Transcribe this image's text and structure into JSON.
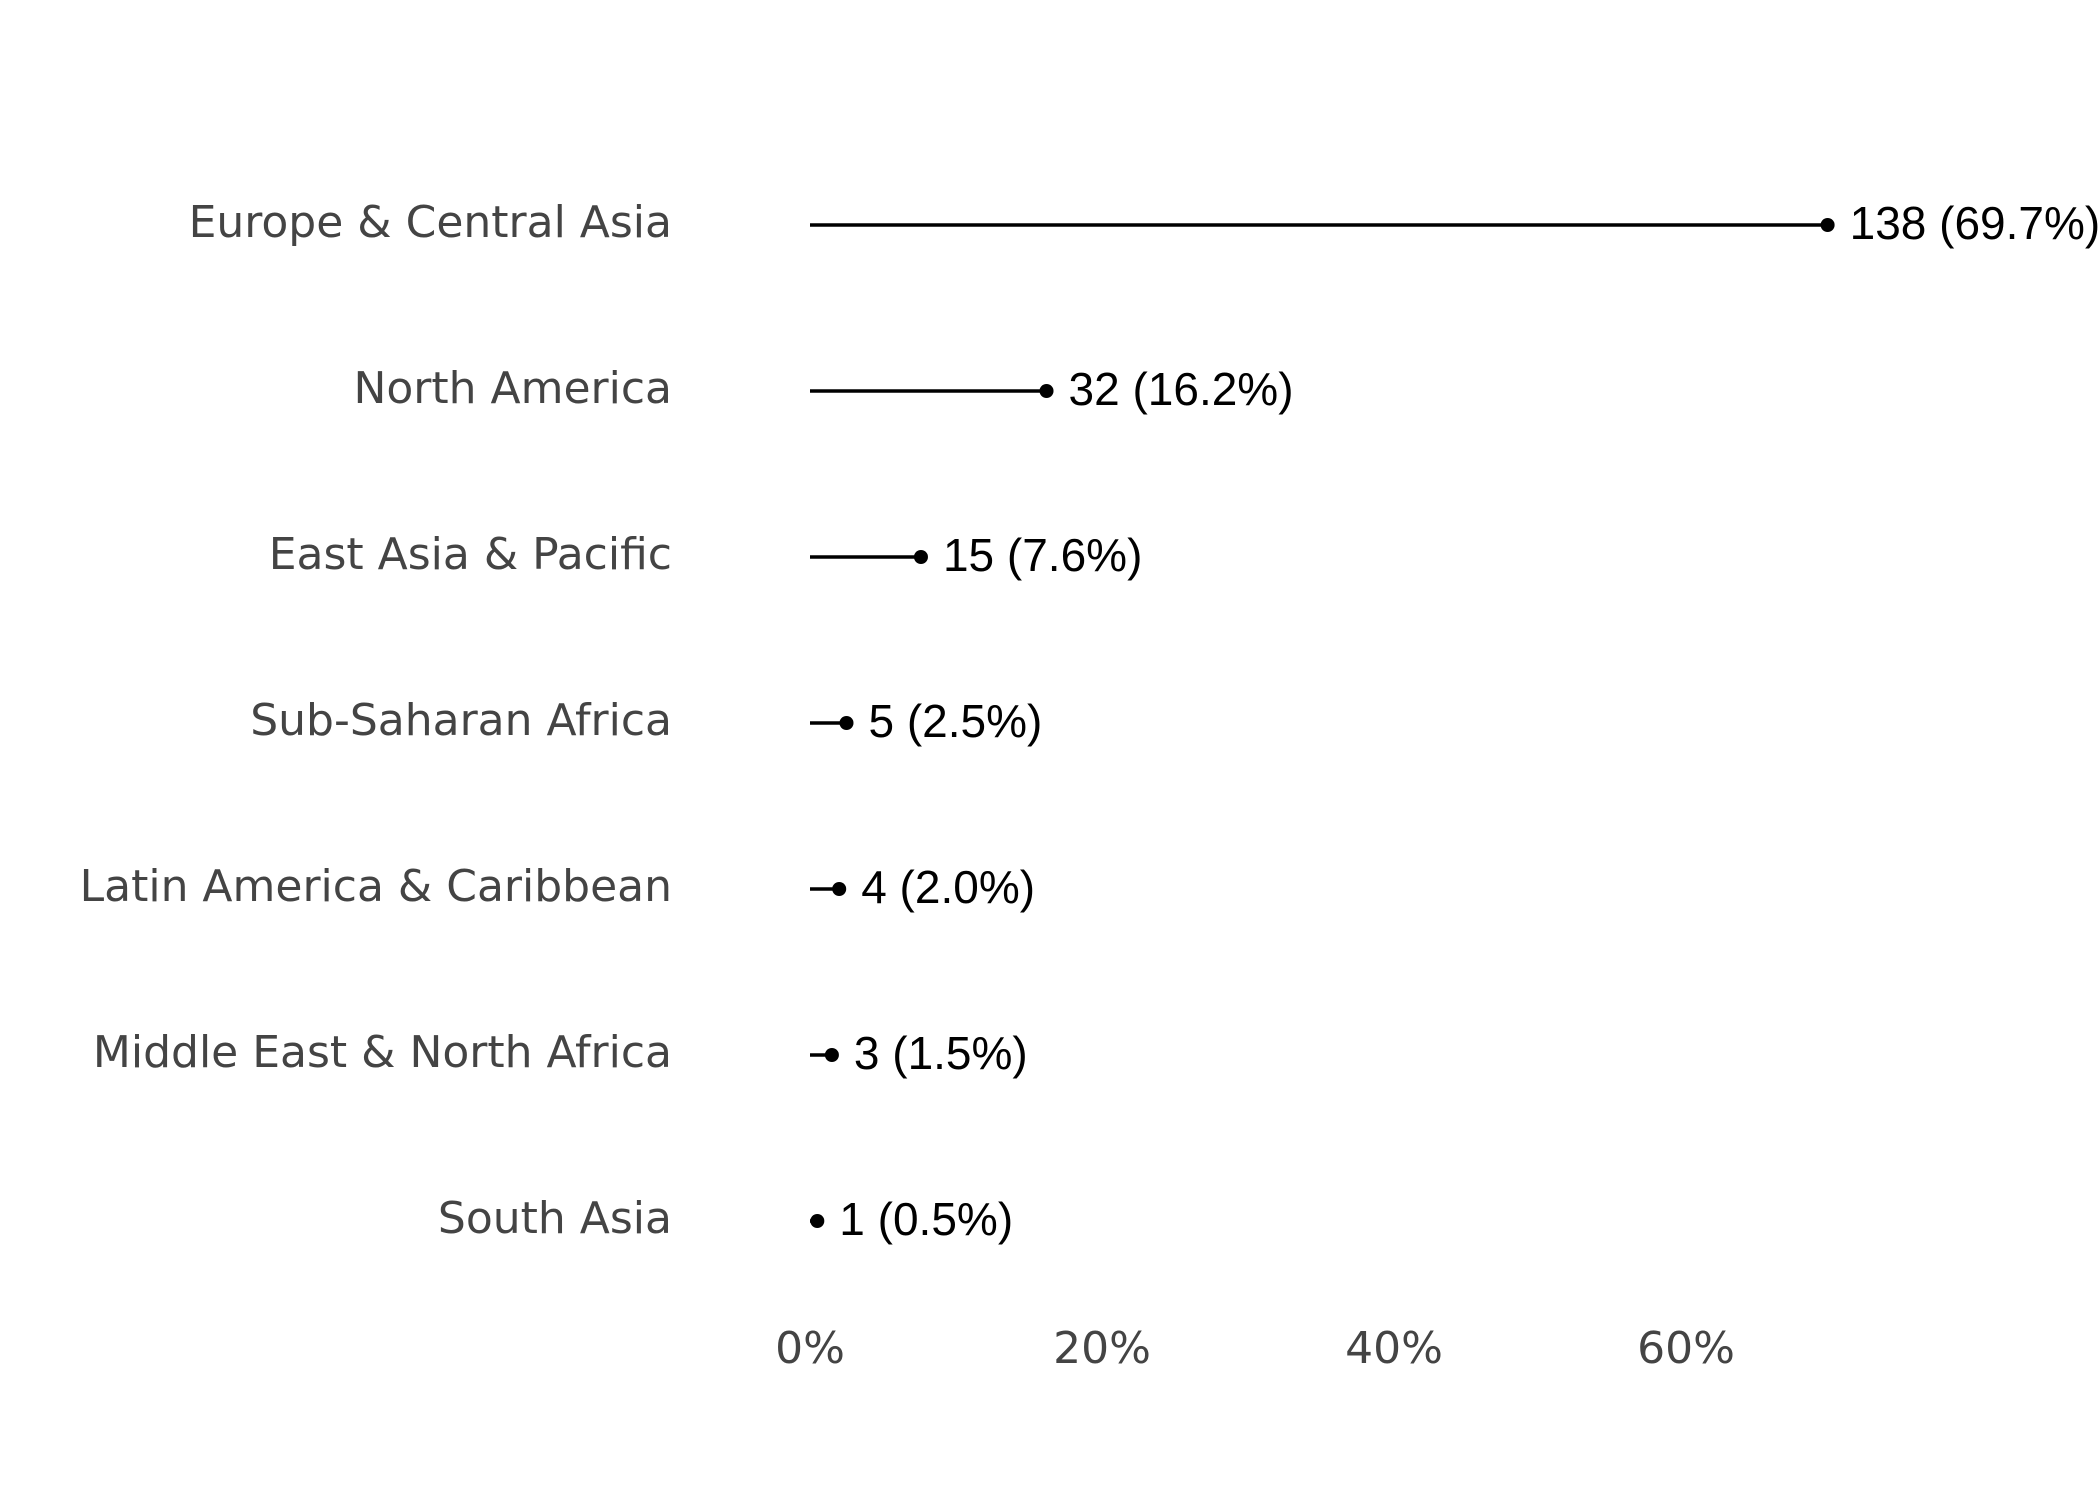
{
  "chart_data": {
    "type": "lollipop",
    "categories": [
      "Europe & Central Asia",
      "North America",
      "East Asia & Pacific",
      "Sub-Saharan Africa",
      "Latin America & Caribbean",
      "Middle East & North Africa",
      "South Asia"
    ],
    "values": [
      69.7,
      16.2,
      7.6,
      2.5,
      2.0,
      1.5,
      0.5
    ],
    "value_labels": [
      "138 (69.7%)",
      "32 (16.2%)",
      "15 (7.6%)",
      "5 (2.5%)",
      "4 (2.0%)",
      "3 (1.5%)",
      "1 (0.5%)"
    ],
    "color": "#000000",
    "xlim": [
      0,
      70
    ],
    "xticks": [
      {
        "value": 0,
        "label": "0%"
      },
      {
        "value": 20,
        "label": "20%"
      },
      {
        "value": 40,
        "label": "40%"
      },
      {
        "value": 60,
        "label": "60%"
      }
    ],
    "grid": false
  }
}
